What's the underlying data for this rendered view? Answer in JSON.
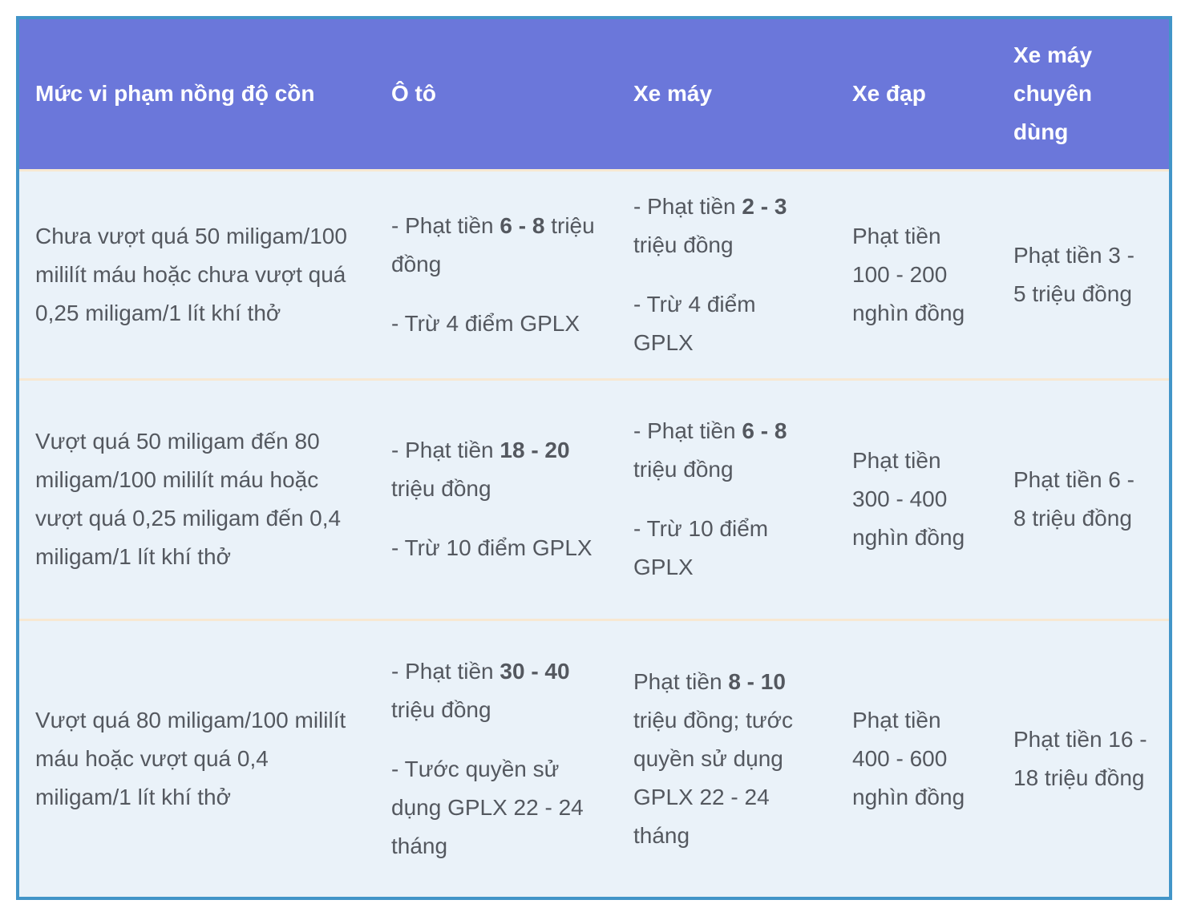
{
  "colors": {
    "header_bg": "#6b77da",
    "row_bg": "#eaf2f9",
    "divider": "#f7e8d2",
    "border": "#4295c8",
    "body_text": "#54585f",
    "header_text": "#ffffff"
  },
  "table": {
    "columns": [
      {
        "label": "Mức vi phạm nồng độ cồn"
      },
      {
        "label": "Ô tô"
      },
      {
        "label": "Xe máy"
      },
      {
        "label": "Xe đạp"
      },
      {
        "label": "Xe máy chuyên dùng"
      }
    ],
    "rows": [
      {
        "cells": [
          [
            [
              {
                "t": "Chưa vượt quá 50 miligam/100 mililít máu hoặc chưa vượt quá 0,25 miligam/1 lít khí thở"
              }
            ]
          ],
          [
            [
              {
                "t": "- Phạt tiền "
              },
              {
                "t": "6 - 8",
                "b": true
              },
              {
                "t": " triệu đồng"
              }
            ],
            [
              {
                "t": "- Trừ 4 điểm GPLX"
              }
            ]
          ],
          [
            [
              {
                "t": "- Phạt tiền "
              },
              {
                "t": "2 - 3",
                "b": true
              },
              {
                "t": " triệu đồng"
              }
            ],
            [
              {
                "t": "- Trừ 4 điểm GPLX"
              }
            ]
          ],
          [
            [
              {
                "t": "Phạt tiền 100 - 200 nghìn đồng"
              }
            ]
          ],
          [
            [
              {
                "t": "Phạt tiền 3 - 5 triệu đồng"
              }
            ]
          ]
        ]
      },
      {
        "cells": [
          [
            [
              {
                "t": "Vượt quá 50 miligam đến 80 miligam/100 mililít máu hoặc vượt quá 0,25 miligam đến 0,4 miligam/1 lít khí thở"
              }
            ]
          ],
          [
            [
              {
                "t": "- Phạt tiền "
              },
              {
                "t": "18 - 20",
                "b": true
              },
              {
                "t": " triệu đồng"
              }
            ],
            [
              {
                "t": "- Trừ 10 điểm GPLX"
              }
            ]
          ],
          [
            [
              {
                "t": "- Phạt tiền "
              },
              {
                "t": "6 - 8",
                "b": true
              },
              {
                "t": " triệu đồng"
              }
            ],
            [
              {
                "t": "- Trừ 10 điểm GPLX"
              }
            ]
          ],
          [
            [
              {
                "t": "Phạt tiền 300 - 400 nghìn đồng"
              }
            ]
          ],
          [
            [
              {
                "t": "Phạt tiền 6 - 8 triệu đồng"
              }
            ]
          ]
        ]
      },
      {
        "cells": [
          [
            [
              {
                "t": "Vượt quá 80 miligam/100 mililít máu hoặc vượt quá 0,4 miligam/1 lít khí thở"
              }
            ]
          ],
          [
            [
              {
                "t": "- Phạt tiền "
              },
              {
                "t": "30 - 40",
                "b": true
              },
              {
                "t": " triệu đồng"
              }
            ],
            [
              {
                "t": "- Tước quyền sử dụng GPLX 22 - 24 tháng"
              }
            ]
          ],
          [
            [
              {
                "t": "Phạt tiền "
              },
              {
                "t": "8 - 10",
                "b": true
              },
              {
                "t": " triệu đồng; tước quyền sử dụng GPLX 22 - 24 tháng"
              }
            ]
          ],
          [
            [
              {
                "t": "Phạt tiền 400 - 600 nghìn đồng"
              }
            ]
          ],
          [
            [
              {
                "t": "Phạt tiền 16 - 18 triệu đồng"
              }
            ]
          ]
        ]
      }
    ]
  }
}
